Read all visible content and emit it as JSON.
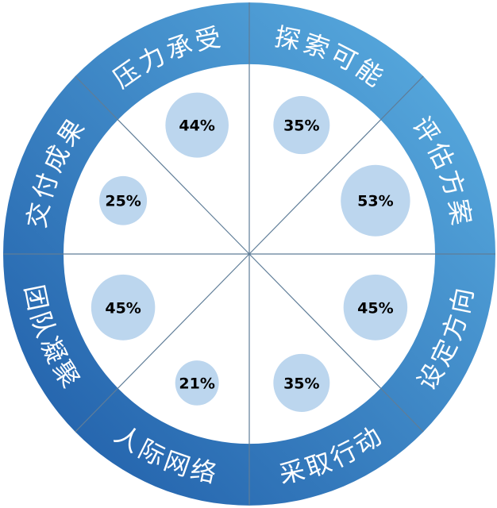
{
  "wheel": {
    "colors": {
      "ring_dark": "#1d5aa6",
      "ring_light": "#5db1e3",
      "bubble": "#bcd6ee",
      "divider": "#5f7d98",
      "label": "#ffffff"
    },
    "segments": [
      {
        "label": "探索可能",
        "value": "35%"
      },
      {
        "label": "评估方案",
        "value": "53%"
      },
      {
        "label": "设定方向",
        "value": "45%"
      },
      {
        "label": "采取行动",
        "value": "35%"
      },
      {
        "label": "人际网络",
        "value": "21%"
      },
      {
        "label": "团队凝聚",
        "value": "45%"
      },
      {
        "label": "交付成果",
        "value": "25%"
      },
      {
        "label": "压力承受",
        "value": "44%"
      }
    ]
  }
}
